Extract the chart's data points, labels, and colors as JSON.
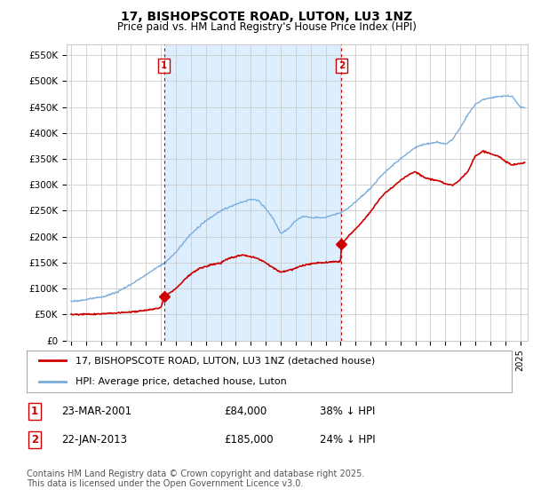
{
  "title": "17, BISHOPSCOTE ROAD, LUTON, LU3 1NZ",
  "subtitle": "Price paid vs. HM Land Registry's House Price Index (HPI)",
  "ylabel_ticks": [
    "£0",
    "£50K",
    "£100K",
    "£150K",
    "£200K",
    "£250K",
    "£300K",
    "£350K",
    "£400K",
    "£450K",
    "£500K",
    "£550K"
  ],
  "ytick_values": [
    0,
    50000,
    100000,
    150000,
    200000,
    250000,
    300000,
    350000,
    400000,
    450000,
    500000,
    550000
  ],
  "ylim": [
    0,
    570000
  ],
  "xlim_start": 1994.7,
  "xlim_end": 2025.5,
  "sale1_x": 2001.22,
  "sale1_y": 84000,
  "sale1_label": "1",
  "sale2_x": 2013.06,
  "sale2_y": 185000,
  "sale2_label": "2",
  "sale_color": "#cc0000",
  "hpi_color": "#7aaddb",
  "vline_color": "#cc0000",
  "grid_color": "#cccccc",
  "bg_color": "#ffffff",
  "shade_color": "#ddeeff",
  "legend_line1": "17, BISHOPSCOTE ROAD, LUTON, LU3 1NZ (detached house)",
  "legend_line2": "HPI: Average price, detached house, Luton",
  "table_row1": [
    "1",
    "23-MAR-2001",
    "£84,000",
    "38% ↓ HPI"
  ],
  "table_row2": [
    "2",
    "22-JAN-2013",
    "£185,000",
    "24% ↓ HPI"
  ],
  "footnote": "Contains HM Land Registry data © Crown copyright and database right 2025.\nThis data is licensed under the Open Government Licence v3.0.",
  "title_fontsize": 10,
  "subtitle_fontsize": 8.5,
  "tick_fontsize": 7.5,
  "legend_fontsize": 8,
  "table_fontsize": 8.5,
  "footnote_fontsize": 7
}
